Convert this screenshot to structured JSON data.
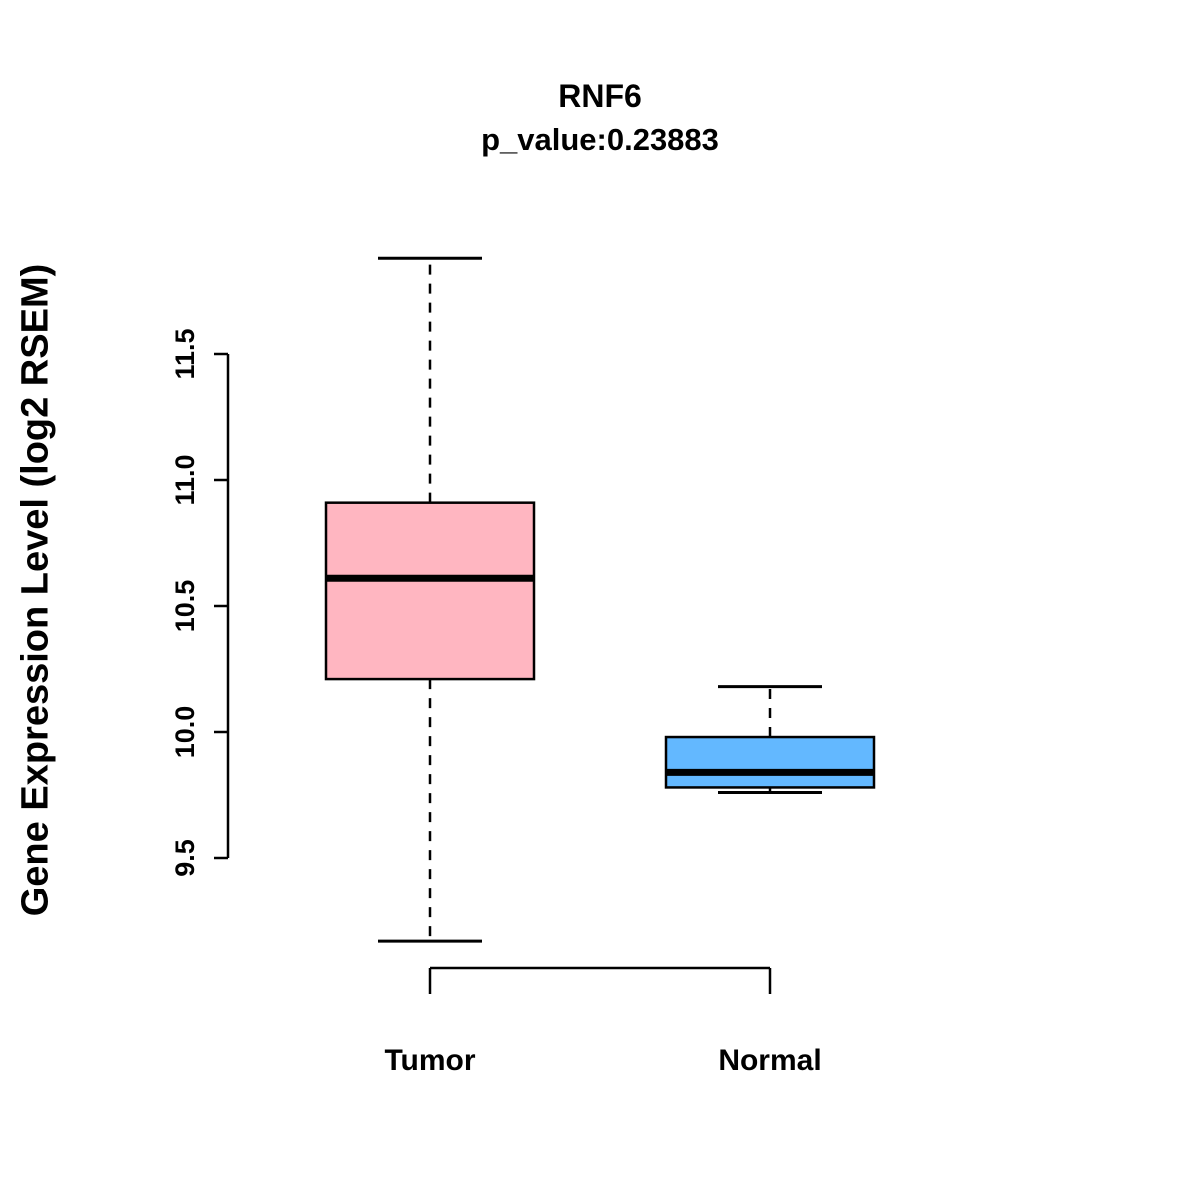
{
  "chart_data": {
    "type": "boxplot",
    "title": "RNF6",
    "subtitle": "p_value:0.23883",
    "ylabel": "Gene Expression Level (log2 RSEM)",
    "xlabel": "",
    "yticks": [
      9.5,
      10.0,
      10.5,
      11.0,
      11.5
    ],
    "ylim": [
      9.1,
      11.95
    ],
    "grid": false,
    "legend": "none",
    "categories": [
      "Tumor",
      "Normal"
    ],
    "groups": [
      {
        "name": "Tumor",
        "color": "#FFB6C1",
        "whisker_low": 9.17,
        "q1": 10.21,
        "median": 10.61,
        "q3": 10.91,
        "whisker_high": 11.88
      },
      {
        "name": "Normal",
        "color": "#63B8FF",
        "whisker_low": 9.76,
        "q1": 9.78,
        "median": 9.84,
        "q3": 9.98,
        "whisker_high": 10.18
      }
    ],
    "stroke_color": "#000000"
  }
}
